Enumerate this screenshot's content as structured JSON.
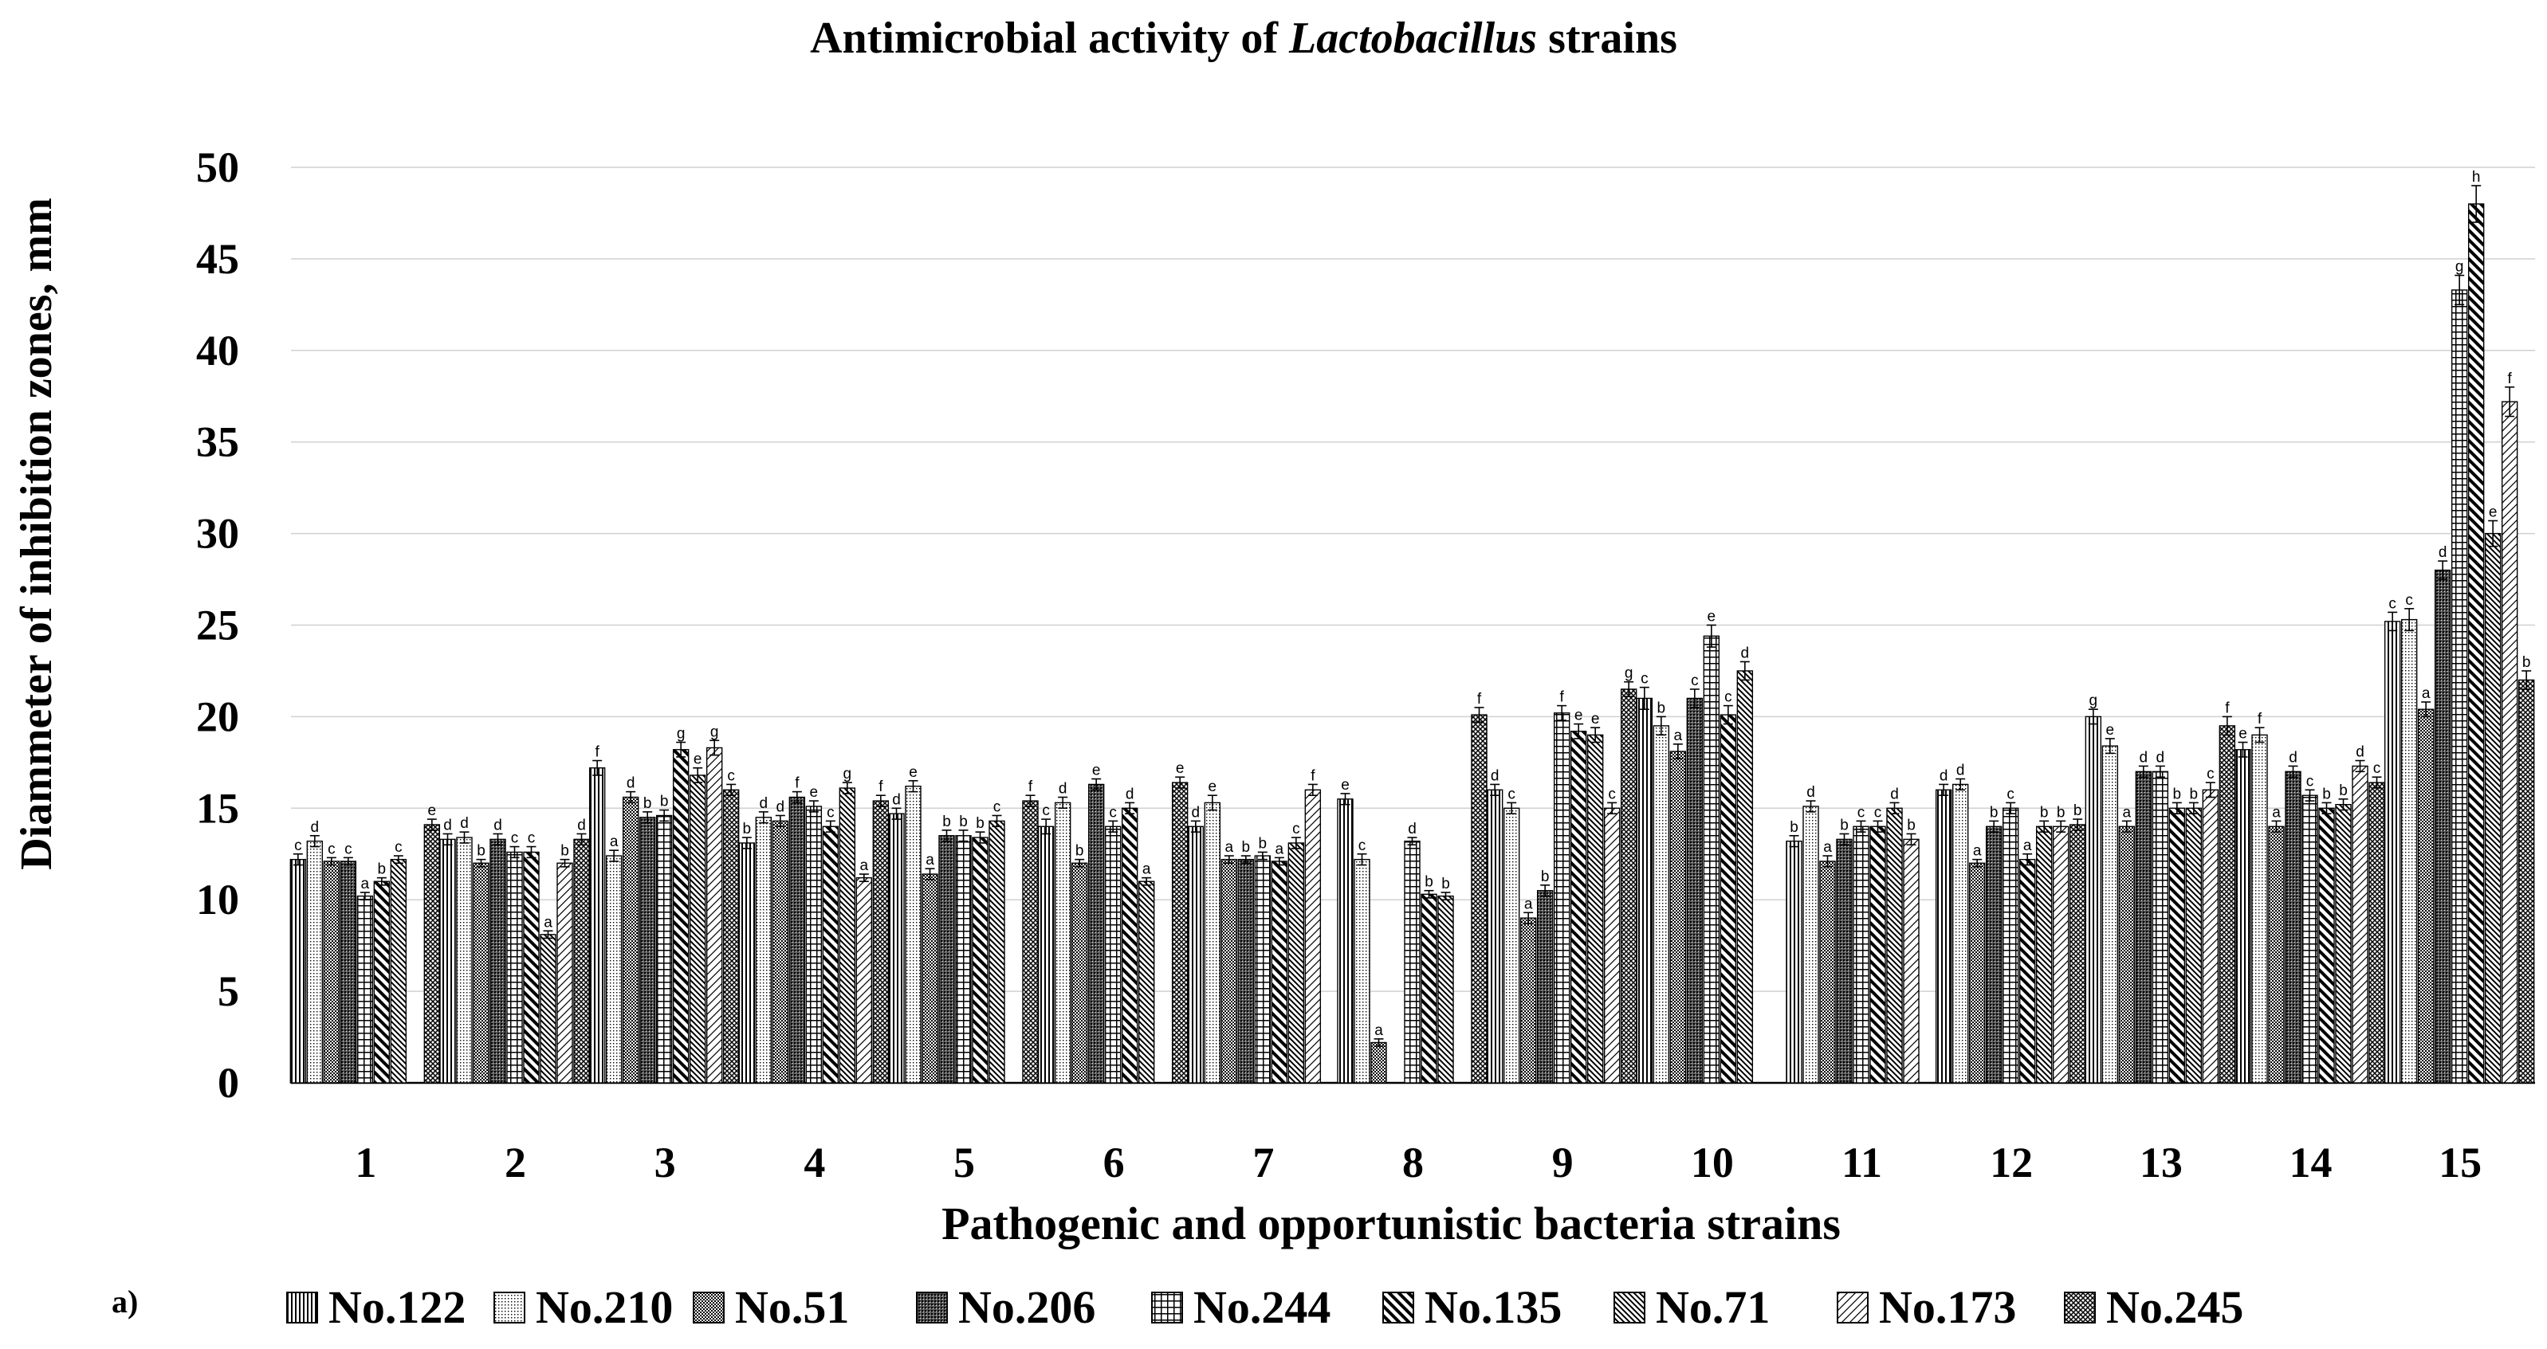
{
  "panel_label": "a)",
  "chart_data": {
    "type": "bar",
    "title_parts": [
      "Antimicrobial activity of ",
      "Lactobacillus",
      " strains"
    ],
    "xlabel": "Pathogenic and opportunistic bacteria strains",
    "ylabel": "Diammeter of inhibition zones, mm",
    "ylim": [
      0,
      50
    ],
    "yticks": [
      0,
      5,
      10,
      15,
      20,
      25,
      30,
      35,
      40,
      45,
      50
    ],
    "grid": true,
    "legend_position": "bottom",
    "categories": [
      "1",
      "2",
      "3",
      "4",
      "5",
      "6",
      "7",
      "8",
      "9",
      "10",
      "11",
      "12",
      "13",
      "14",
      "15"
    ],
    "series": [
      {
        "name": "No.122",
        "pattern": "p0",
        "values": [
          12.2,
          13.3,
          17.2,
          13.1,
          14.7,
          14.0,
          14.0,
          15.5,
          16.0,
          21.0,
          13.2,
          16.0,
          20.0,
          18.2,
          25.2
        ],
        "errors": [
          0.3,
          0.3,
          0.4,
          0.3,
          0.3,
          0.4,
          0.3,
          0.3,
          0.3,
          0.6,
          0.3,
          0.3,
          0.4,
          0.4,
          0.5
        ],
        "letters": [
          "c",
          "d",
          "f",
          "b",
          "d",
          "c",
          "d",
          "e",
          "d",
          "c",
          "b",
          "d",
          "g",
          "e",
          "c"
        ]
      },
      {
        "name": "No.210",
        "pattern": "p1",
        "values": [
          13.2,
          13.4,
          12.4,
          14.5,
          16.2,
          15.3,
          15.3,
          12.2,
          15.0,
          19.5,
          15.1,
          16.3,
          18.4,
          19.0,
          25.3
        ],
        "errors": [
          0.3,
          0.3,
          0.3,
          0.3,
          0.3,
          0.3,
          0.4,
          0.3,
          0.3,
          0.5,
          0.3,
          0.3,
          0.4,
          0.4,
          0.6
        ],
        "letters": [
          "d",
          "d",
          "a",
          "d",
          "e",
          "d",
          "e",
          "c",
          "c",
          "b",
          "d",
          "d",
          "e",
          "f",
          "c"
        ]
      },
      {
        "name": "No.51",
        "pattern": "p2",
        "values": [
          12.1,
          12.0,
          15.6,
          14.3,
          11.4,
          12.0,
          12.2,
          2.2,
          9.0,
          18.1,
          12.1,
          12.0,
          14.0,
          14.0,
          20.4
        ],
        "errors": [
          0.2,
          0.2,
          0.3,
          0.3,
          0.3,
          0.2,
          0.2,
          0.2,
          0.3,
          0.4,
          0.3,
          0.2,
          0.3,
          0.3,
          0.4
        ],
        "letters": [
          "c",
          "b",
          "d",
          "d",
          "a",
          "b",
          "a",
          "a",
          "a",
          "a",
          "a",
          "a",
          "a",
          "a",
          "a"
        ]
      },
      {
        "name": "No.206",
        "pattern": "p3",
        "values": [
          12.1,
          13.3,
          14.5,
          15.6,
          13.5,
          16.3,
          12.2,
          0,
          10.5,
          21.0,
          13.3,
          14.0,
          17.0,
          17.0,
          28.0
        ],
        "errors": [
          0.2,
          0.3,
          0.3,
          0.3,
          0.3,
          0.3,
          0.2,
          0,
          0.3,
          0.5,
          0.3,
          0.3,
          0.3,
          0.3,
          0.5
        ],
        "letters": [
          "c",
          "d",
          "b",
          "f",
          "b",
          "e",
          "b",
          "",
          "b",
          "c",
          "b",
          "b",
          "d",
          "d",
          "d"
        ]
      },
      {
        "name": "No.244",
        "pattern": "p4",
        "values": [
          10.2,
          12.6,
          14.6,
          15.1,
          13.5,
          14.0,
          12.4,
          13.2,
          20.2,
          24.4,
          14.0,
          15.0,
          17.0,
          15.7,
          43.3
        ],
        "errors": [
          0.2,
          0.3,
          0.3,
          0.3,
          0.3,
          0.3,
          0.2,
          0.2,
          0.4,
          0.6,
          0.3,
          0.3,
          0.3,
          0.3,
          0.8
        ],
        "letters": [
          "a",
          "c",
          "b",
          "e",
          "b",
          "c",
          "b",
          "d",
          "f",
          "e",
          "c",
          "c",
          "d",
          "c",
          "g"
        ]
      },
      {
        "name": "No.135",
        "pattern": "p5",
        "values": [
          11.0,
          12.6,
          18.2,
          14.0,
          13.4,
          15.0,
          12.1,
          10.3,
          19.2,
          20.1,
          14.0,
          12.2,
          15.0,
          15.0,
          48.0
        ],
        "errors": [
          0.2,
          0.3,
          0.4,
          0.3,
          0.3,
          0.3,
          0.2,
          0.2,
          0.4,
          0.5,
          0.3,
          0.3,
          0.3,
          0.3,
          1.0
        ],
        "letters": [
          "b",
          "c",
          "g",
          "c",
          "b",
          "d",
          "a",
          "b",
          "e",
          "c",
          "c",
          "a",
          "b",
          "b",
          "h"
        ]
      },
      {
        "name": "No.71",
        "pattern": "p6",
        "values": [
          12.2,
          8.1,
          16.8,
          16.1,
          14.3,
          11.0,
          13.1,
          10.2,
          19.0,
          22.5,
          15.0,
          14.0,
          15.0,
          15.2,
          30.0
        ],
        "errors": [
          0.2,
          0.2,
          0.4,
          0.3,
          0.3,
          0.2,
          0.3,
          0.2,
          0.4,
          0.5,
          0.3,
          0.3,
          0.3,
          0.3,
          0.7
        ],
        "letters": [
          "c",
          "a",
          "e",
          "g",
          "c",
          "a",
          "c",
          "b",
          "e",
          "d",
          "d",
          "b",
          "b",
          "b",
          "e"
        ]
      },
      {
        "name": "No.173",
        "pattern": "p7",
        "values": [
          0,
          12.0,
          18.3,
          11.2,
          0,
          0,
          16.0,
          0,
          15.0,
          0,
          13.3,
          14.0,
          16.0,
          17.3,
          37.2
        ],
        "errors": [
          0,
          0.2,
          0.4,
          0.2,
          0,
          0,
          0.3,
          0,
          0.3,
          0,
          0.3,
          0.3,
          0.4,
          0.3,
          0.8
        ],
        "letters": [
          "",
          "b",
          "g",
          "a",
          "",
          "",
          "f",
          "",
          "c",
          "",
          "b",
          "b",
          "c",
          "d",
          "f"
        ]
      },
      {
        "name": "No.245",
        "pattern": "p8",
        "values": [
          14.1,
          13.3,
          16.0,
          15.4,
          15.4,
          16.4,
          0,
          20.1,
          21.5,
          0,
          0,
          14.1,
          19.5,
          16.4,
          22.0
        ],
        "errors": [
          0.3,
          0.3,
          0.3,
          0.3,
          0.3,
          0.3,
          0,
          0.4,
          0.4,
          0,
          0,
          0.3,
          0.5,
          0.3,
          0.5
        ],
        "letters": [
          "e",
          "d",
          "c",
          "f",
          "f",
          "e",
          "",
          "f",
          "g",
          "",
          "",
          "b",
          "f",
          "c",
          "b"
        ]
      }
    ]
  }
}
